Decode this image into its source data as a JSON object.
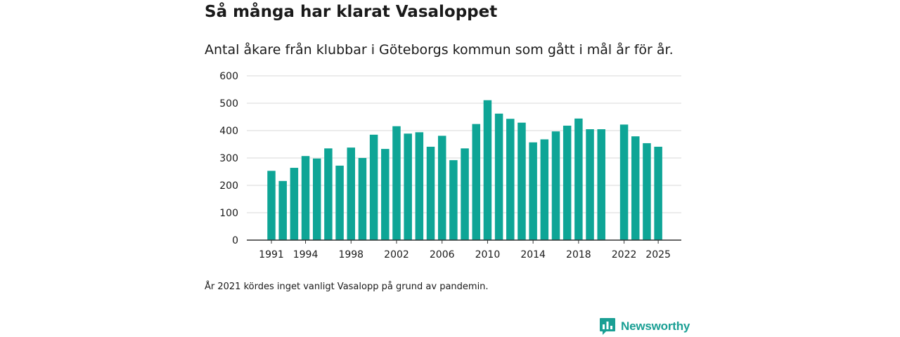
{
  "page": {
    "title": "Så många har klarat Vasaloppet",
    "subtitle": "Antal åkare från klubbar i Göteborgs kommun som gått i mål år för år.",
    "footnote": "År 2021 kördes inget vanligt Vasalopp på grund av pandemin.",
    "brand": "Newsworthy"
  },
  "colors": {
    "bar": "#0ea596",
    "grid": "#d9d9d9",
    "axis": "#333333",
    "brand": "#1a9f94"
  },
  "chart_data": {
    "type": "bar",
    "title": "Så många har klarat Vasaloppet",
    "subtitle": "Antal åkare från klubbar i Göteborgs kommun som gått i mål år för år.",
    "xlabel": "",
    "ylabel": "",
    "ylim": [
      0,
      600
    ],
    "yticks": [
      0,
      100,
      200,
      300,
      400,
      500,
      600
    ],
    "xticks": [
      1991,
      1994,
      1998,
      2002,
      2006,
      2010,
      2014,
      2018,
      2022,
      2025
    ],
    "grid": true,
    "legend": "none",
    "categories": [
      1991,
      1992,
      1993,
      1994,
      1995,
      1996,
      1997,
      1998,
      1999,
      2000,
      2001,
      2002,
      2003,
      2004,
      2005,
      2006,
      2007,
      2008,
      2009,
      2010,
      2011,
      2012,
      2013,
      2014,
      2015,
      2016,
      2017,
      2018,
      2019,
      2020,
      2021,
      2022,
      2023,
      2024,
      2025
    ],
    "values": [
      253,
      216,
      264,
      307,
      298,
      335,
      272,
      338,
      300,
      385,
      333,
      416,
      389,
      394,
      341,
      381,
      292,
      335,
      424,
      511,
      462,
      443,
      429,
      357,
      368,
      397,
      418,
      444,
      405,
      405,
      null,
      422,
      379,
      354,
      341
    ]
  }
}
